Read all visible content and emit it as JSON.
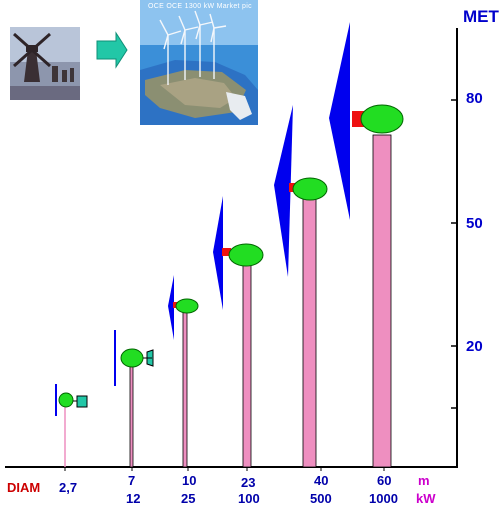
{
  "axis": {
    "title": "METR",
    "ticks": [
      "80",
      "50",
      "20"
    ]
  },
  "diameter_row": {
    "label": "DIAM",
    "values": [
      "2,7",
      "7",
      "10",
      "23",
      "40",
      "60"
    ],
    "unit": "m"
  },
  "partial_row": {
    "values": [
      "...",
      "12",
      "25",
      "100",
      "500",
      "1000"
    ],
    "unit": "kW"
  },
  "photo": {
    "caption": "OCE OCE 1300 kW Market pic"
  },
  "colors": {
    "tower": "#ee8fc0",
    "nacelle": "#22dd22",
    "blade": "#0000ee",
    "hub": "#ee1111",
    "accent": "#22c7a7",
    "axis_text": "#0000cc"
  },
  "icons": {
    "windmill_photo": "windmill-icon",
    "arrow": "arrow-right-icon",
    "wind_farm_photo": "wind-farm-icon"
  }
}
